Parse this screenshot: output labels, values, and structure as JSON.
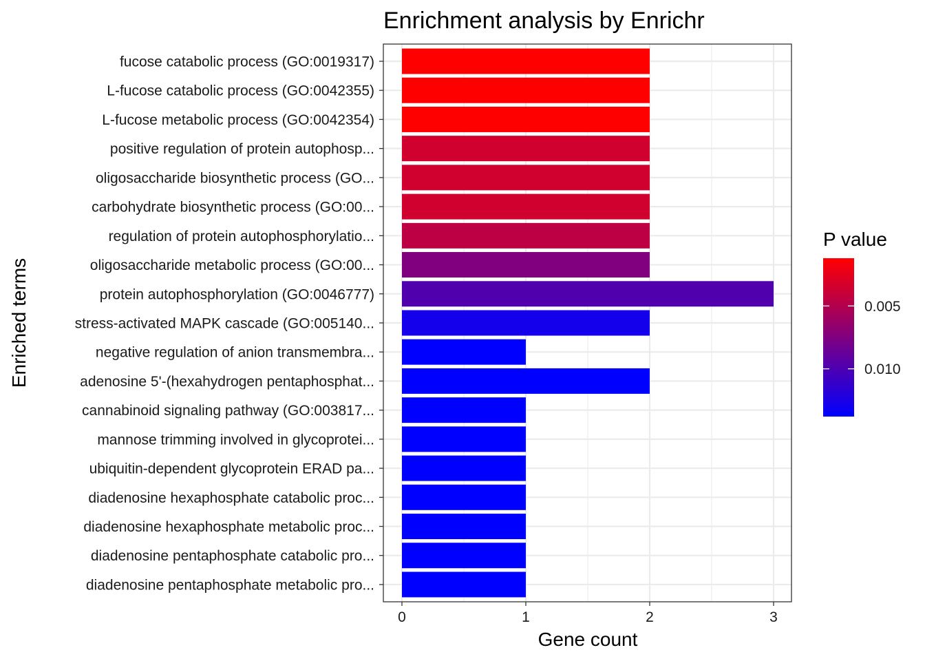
{
  "chart_data": {
    "type": "bar",
    "orientation": "horizontal",
    "title": "Enrichment analysis by Enrichr",
    "xlabel": "Gene count",
    "ylabel": "Enriched terms",
    "xlim": [
      0,
      3.15
    ],
    "xticks": [
      0,
      1,
      2,
      3
    ],
    "grid": true,
    "categories": [
      "fucose catabolic process (GO:0019317)",
      "L-fucose catabolic process (GO:0042355)",
      "L-fucose metabolic process (GO:0042354)",
      "positive regulation of protein autophosp...",
      "oligosaccharide biosynthetic process (GO...",
      "carbohydrate biosynthetic process (GO:00...",
      "regulation of protein autophosphorylatio...",
      "oligosaccharide metabolic process (GO:00...",
      "protein autophosphorylation (GO:0046777)",
      "stress-activated MAPK cascade (GO:005140...",
      "negative regulation of anion transmembra...",
      "adenosine 5'-(hexahydrogen pentaphosphat...",
      "cannabinoid signaling pathway (GO:003817...",
      "mannose trimming involved in glycoprotei...",
      "ubiquitin-dependent glycoprotein ERAD pa...",
      "diadenosine hexaphosphate catabolic proc...",
      "diadenosine hexaphosphate metabolic proc...",
      "diadenosine pentaphosphate catabolic pro...",
      "diadenosine pentaphosphate metabolic pro..."
    ],
    "values": [
      2,
      2,
      2,
      2,
      2,
      2,
      2,
      2,
      3,
      2,
      1,
      2,
      1,
      1,
      1,
      1,
      1,
      1,
      1
    ],
    "pvalues": [
      0.0012,
      0.0012,
      0.0012,
      0.0035,
      0.0035,
      0.0035,
      0.0045,
      0.0075,
      0.0098,
      0.0128,
      0.0138,
      0.0138,
      0.0138,
      0.0138,
      0.0138,
      0.0138,
      0.0138,
      0.0138,
      0.0138
    ],
    "legend": {
      "title": "P value",
      "placement": "right",
      "range": [
        0.0012,
        0.0138
      ],
      "ticks": [
        0.005,
        0.01
      ],
      "tick_labels": [
        "0.005",
        "0.010"
      ],
      "low_color": "#FF0000",
      "high_color": "#0000FF"
    }
  }
}
